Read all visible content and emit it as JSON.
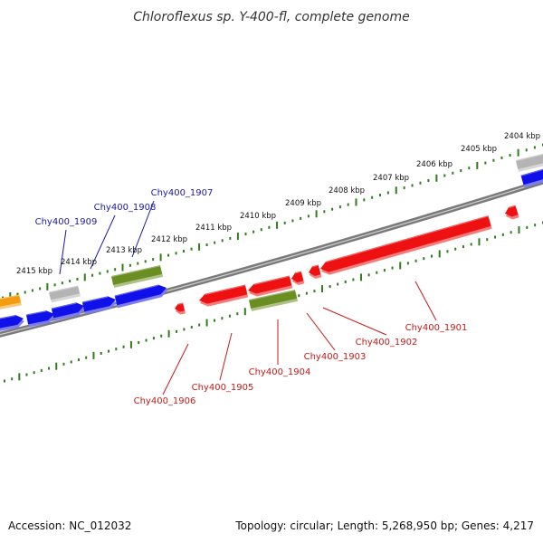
{
  "title": "Chloroflexus sp. Y-400-fl, complete genome",
  "footer": {
    "accession": "Accession: NC_012032",
    "summary": "Topology: circular; Length: 5,268,950 bp; Genes: 4,217"
  },
  "colors": {
    "backbone": "#7a7a7a",
    "tick": "#2f7d1b",
    "forward_gene": "#1010e8",
    "reverse_gene": "#ee1111",
    "rna_gene": "#6b8e23",
    "other_gene": "#b4b4b4",
    "orange_gene": "#f39c12",
    "forward_label": "#1a1aa6",
    "reverse_label": "#c41a1a"
  },
  "kbp_markers": [
    "2404 kbp",
    "2405 kbp",
    "2406 kbp",
    "2407 kbp",
    "2408 kbp",
    "2409 kbp",
    "2410 kbp",
    "2411 kbp",
    "2412 kbp",
    "2413 kbp",
    "2414 kbp",
    "2415 kbp"
  ],
  "gene_labels": {
    "forward": [
      "Chy400_1907",
      "Chy400_1908",
      "Chy400_1909"
    ],
    "reverse": [
      "Chy400_1901",
      "Chy400_1902",
      "Chy400_1903",
      "Chy400_1904",
      "Chy400_1905",
      "Chy400_1906"
    ]
  }
}
